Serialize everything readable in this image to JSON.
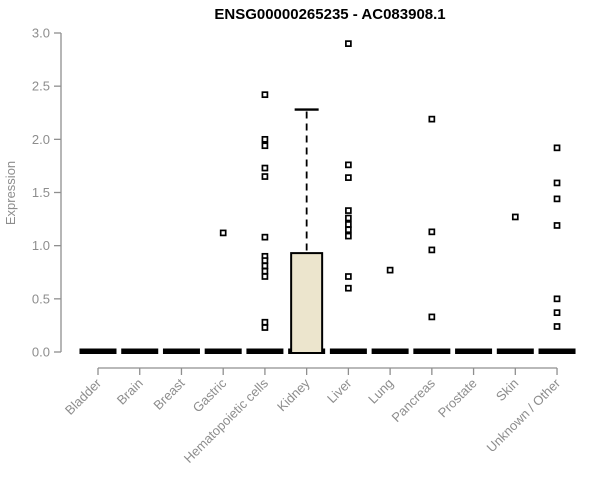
{
  "colors": {
    "background": "#ffffff",
    "axis_line": "#8f8f8f",
    "tick_text": "#8d8d8d",
    "title_text": "#000000",
    "box_fill": "#ece5cd",
    "box_border": "#000000",
    "zero_bar": "#000000",
    "outlier_stroke": "#000000",
    "outlier_fill": "#ffffff"
  },
  "chart_data": {
    "type": "boxplot",
    "title": "ENSG00000265235 - AC083908.1",
    "xlabel": "",
    "ylabel": "Expression",
    "ylim": [
      0,
      3
    ],
    "yticks": [
      "0.0",
      "0.5",
      "1.0",
      "1.5",
      "2.0",
      "2.5",
      "3.0"
    ],
    "grid": false,
    "legend": "none",
    "x_label_rotation_deg": 45,
    "outlier_marker": "open-square",
    "categories": [
      "Bladder",
      "Brain",
      "Breast",
      "Gastric",
      "Hematopoietic cells",
      "Kidney",
      "Liver",
      "Lung",
      "Pancreas",
      "Prostate",
      "Skin",
      "Unknown / Other"
    ],
    "boxes": [
      {
        "category": "Bladder",
        "q1": 0,
        "median": 0,
        "q3": 0,
        "whisker_low": 0,
        "whisker_high": 0,
        "outliers": []
      },
      {
        "category": "Brain",
        "q1": 0,
        "median": 0,
        "q3": 0,
        "whisker_low": 0,
        "whisker_high": 0,
        "outliers": []
      },
      {
        "category": "Breast",
        "q1": 0,
        "median": 0,
        "q3": 0,
        "whisker_low": 0,
        "whisker_high": 0,
        "outliers": []
      },
      {
        "category": "Gastric",
        "q1": 0,
        "median": 0,
        "q3": 0,
        "whisker_low": 0,
        "whisker_high": 0,
        "outliers": [
          1.12
        ]
      },
      {
        "category": "Hematopoietic cells",
        "q1": 0,
        "median": 0,
        "q3": 0,
        "whisker_low": 0,
        "whisker_high": 0,
        "outliers": [
          2.42,
          2.0,
          1.94,
          1.73,
          1.65,
          1.08,
          0.9,
          0.86,
          0.81,
          0.76,
          0.71,
          0.28,
          0.23
        ]
      },
      {
        "category": "Kidney",
        "q1": 0,
        "median": 0,
        "q3": 0.93,
        "whisker_low": 0,
        "whisker_high": 2.28,
        "outliers": []
      },
      {
        "category": "Liver",
        "q1": 0,
        "median": 0,
        "q3": 0,
        "whisker_low": 0,
        "whisker_high": 0,
        "outliers": [
          2.9,
          1.76,
          1.64,
          1.33,
          1.26,
          1.2,
          1.15,
          1.09,
          0.71,
          0.6
        ]
      },
      {
        "category": "Lung",
        "q1": 0,
        "median": 0,
        "q3": 0,
        "whisker_low": 0,
        "whisker_high": 0,
        "outliers": [
          0.77
        ]
      },
      {
        "category": "Pancreas",
        "q1": 0,
        "median": 0,
        "q3": 0,
        "whisker_low": 0,
        "whisker_high": 0,
        "outliers": [
          2.19,
          1.13,
          0.96,
          0.33
        ]
      },
      {
        "category": "Prostate",
        "q1": 0,
        "median": 0,
        "q3": 0,
        "whisker_low": 0,
        "whisker_high": 0,
        "outliers": []
      },
      {
        "category": "Skin",
        "q1": 0,
        "median": 0,
        "q3": 0,
        "whisker_low": 0,
        "whisker_high": 0,
        "outliers": [
          1.27
        ]
      },
      {
        "category": "Unknown / Other",
        "q1": 0,
        "median": 0,
        "q3": 0,
        "whisker_low": 0,
        "whisker_high": 0,
        "outliers": [
          1.92,
          1.59,
          1.44,
          1.19,
          0.5,
          0.37,
          0.24
        ]
      }
    ]
  }
}
